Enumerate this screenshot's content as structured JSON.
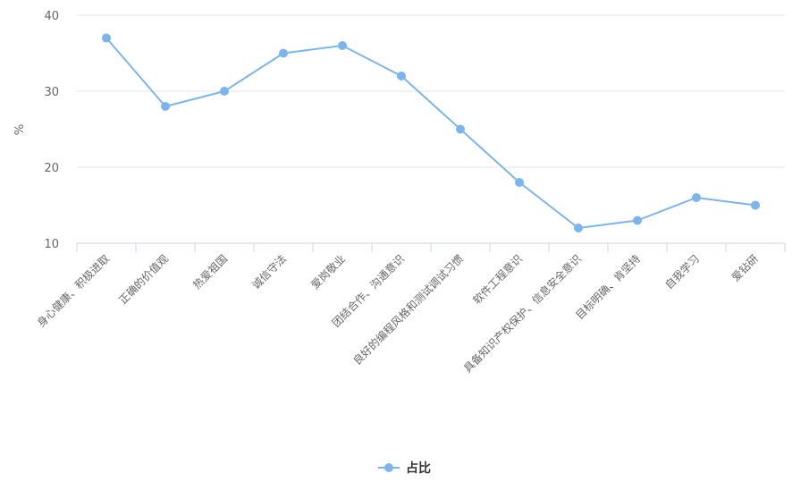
{
  "chart_data": {
    "type": "line",
    "title": "",
    "xlabel": "",
    "ylabel": "%",
    "ylim": [
      10,
      40
    ],
    "yticks": [
      10,
      20,
      30,
      40
    ],
    "grid": true,
    "legend_position": "bottom-center",
    "categories": [
      "身心健康、积极进取",
      "正确的价值观",
      "热爱祖国",
      "诚信守法",
      "爱岗敬业",
      "团结合作、沟通意识",
      "良好的编程风格和测试调试习惯",
      "软件工程意识",
      "具备知识产权保护、信息安全意识",
      "目标明确、肯坚持",
      "自我学习",
      "爱钻研"
    ],
    "series": [
      {
        "name": "占比",
        "color": "#7cb5ec",
        "values": [
          37,
          28,
          30,
          35,
          36,
          32,
          25,
          18,
          12,
          13,
          16,
          15
        ]
      }
    ]
  }
}
